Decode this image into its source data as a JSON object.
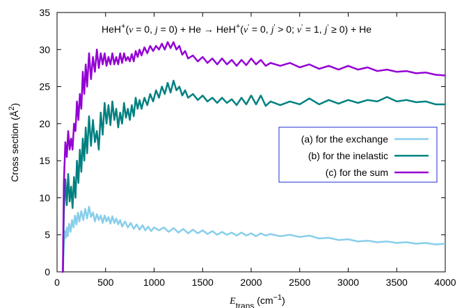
{
  "chart_data": {
    "type": "line",
    "title": {
      "reactant": "HeH",
      "reactant_charge": "+",
      "reactant_state_open": "(",
      "v": "v",
      "v_value": " = 0, ",
      "j": "j",
      "j_value": " = 0) + He → ",
      "product": "HeH",
      "product_charge": "+",
      "product_state_open": "(",
      "vp": "v",
      "prime": "′",
      "vp_value": " = 0, ",
      "jp": "j",
      "jp_value": " > 0; ",
      "vp2": "v",
      "vp2_value": " = 1, ",
      "jp2": "j",
      "jp2_value": " ≥ 0) + He"
    },
    "xlabel": {
      "main": "E",
      "sub": "trans",
      "unit_open": " (cm",
      "unit_sup": "−1",
      "unit_close": ")"
    },
    "ylabel": {
      "main": "Cross section (Å",
      "sup": "2",
      "close": ")"
    },
    "xlim": [
      0,
      4000
    ],
    "ylim": [
      0,
      35
    ],
    "xticks": [
      "0",
      "500",
      "1000",
      "1500",
      "2000",
      "2500",
      "3000",
      "3500",
      "4000"
    ],
    "yticks": [
      "0",
      "5",
      "10",
      "15",
      "20",
      "25",
      "30",
      "35"
    ],
    "grid": false,
    "legend_position": "right-middle",
    "series": [
      {
        "name": "(a) for the exchange",
        "color": "#87ceeb",
        "points": [
          [
            50,
            0
          ],
          [
            60,
            0
          ],
          [
            70,
            3.5
          ],
          [
            80,
            5.5
          ],
          [
            90,
            4.6
          ],
          [
            100,
            6.0
          ],
          [
            110,
            4.8
          ],
          [
            125,
            6.5
          ],
          [
            140,
            5.4
          ],
          [
            155,
            7.0
          ],
          [
            170,
            6.0
          ],
          [
            185,
            7.6
          ],
          [
            200,
            6.4
          ],
          [
            215,
            8.0
          ],
          [
            230,
            6.8
          ],
          [
            250,
            8.2
          ],
          [
            270,
            7.0
          ],
          [
            290,
            8.5
          ],
          [
            310,
            7.2
          ],
          [
            330,
            8.8
          ],
          [
            350,
            7.4
          ],
          [
            370,
            8.0
          ],
          [
            390,
            6.8
          ],
          [
            410,
            7.8
          ],
          [
            430,
            7.0
          ],
          [
            450,
            7.6
          ],
          [
            470,
            6.6
          ],
          [
            490,
            7.6
          ],
          [
            510,
            6.8
          ],
          [
            530,
            7.4
          ],
          [
            550,
            6.5
          ],
          [
            570,
            7.5
          ],
          [
            590,
            6.6
          ],
          [
            610,
            7.2
          ],
          [
            630,
            6.4
          ],
          [
            650,
            7.0
          ],
          [
            670,
            6.1
          ],
          [
            700,
            6.8
          ],
          [
            730,
            6.0
          ],
          [
            760,
            6.6
          ],
          [
            790,
            5.8
          ],
          [
            820,
            6.4
          ],
          [
            850,
            5.7
          ],
          [
            880,
            6.3
          ],
          [
            910,
            5.6
          ],
          [
            940,
            6.1
          ],
          [
            970,
            5.5
          ],
          [
            1000,
            6.0
          ],
          [
            1050,
            5.6
          ],
          [
            1100,
            6.0
          ],
          [
            1150,
            5.4
          ],
          [
            1200,
            5.9
          ],
          [
            1250,
            5.3
          ],
          [
            1300,
            5.8
          ],
          [
            1350,
            5.2
          ],
          [
            1400,
            5.7
          ],
          [
            1450,
            5.2
          ],
          [
            1500,
            5.6
          ],
          [
            1550,
            5.1
          ],
          [
            1600,
            5.5
          ],
          [
            1650,
            5.0
          ],
          [
            1700,
            5.4
          ],
          [
            1750,
            5.0
          ],
          [
            1800,
            5.3
          ],
          [
            1850,
            4.9
          ],
          [
            1900,
            5.3
          ],
          [
            1950,
            4.9
          ],
          [
            2000,
            5.2
          ],
          [
            2050,
            4.8
          ],
          [
            2100,
            5.2
          ],
          [
            2150,
            4.9
          ],
          [
            2200,
            5.1
          ],
          [
            2300,
            4.8
          ],
          [
            2400,
            5.0
          ],
          [
            2500,
            4.7
          ],
          [
            2600,
            4.9
          ],
          [
            2700,
            4.5
          ],
          [
            2800,
            4.6
          ],
          [
            2900,
            4.3
          ],
          [
            3000,
            4.4
          ],
          [
            3100,
            4.1
          ],
          [
            3200,
            4.2
          ],
          [
            3300,
            4.0
          ],
          [
            3400,
            4.1
          ],
          [
            3500,
            3.9
          ],
          [
            3600,
            4.0
          ],
          [
            3700,
            3.8
          ],
          [
            3800,
            3.9
          ],
          [
            3900,
            3.7
          ],
          [
            4000,
            3.8
          ]
        ]
      },
      {
        "name": "(b) for the inelastic",
        "color": "#008080",
        "points": [
          [
            50,
            0
          ],
          [
            60,
            0
          ],
          [
            70,
            8.0
          ],
          [
            85,
            12.5
          ],
          [
            100,
            9.0
          ],
          [
            115,
            13.2
          ],
          [
            130,
            9.5
          ],
          [
            145,
            11.5
          ],
          [
            160,
            8.6
          ],
          [
            175,
            12.8
          ],
          [
            190,
            10.0
          ],
          [
            205,
            15.0
          ],
          [
            220,
            12.0
          ],
          [
            235,
            16.5
          ],
          [
            250,
            13.5
          ],
          [
            265,
            18.0
          ],
          [
            280,
            15.0
          ],
          [
            295,
            19.5
          ],
          [
            310,
            16.0
          ],
          [
            330,
            21.0
          ],
          [
            350,
            17.0
          ],
          [
            370,
            20.5
          ],
          [
            390,
            17.5
          ],
          [
            410,
            19.0
          ],
          [
            430,
            16.5
          ],
          [
            450,
            21.5
          ],
          [
            470,
            18.5
          ],
          [
            490,
            22.8
          ],
          [
            510,
            20.0
          ],
          [
            530,
            22.5
          ],
          [
            550,
            19.8
          ],
          [
            570,
            23.0
          ],
          [
            590,
            20.5
          ],
          [
            610,
            22.0
          ],
          [
            630,
            19.5
          ],
          [
            650,
            21.5
          ],
          [
            670,
            20.0
          ],
          [
            690,
            22.8
          ],
          [
            710,
            20.8
          ],
          [
            730,
            22.0
          ],
          [
            750,
            20.5
          ],
          [
            770,
            22.5
          ],
          [
            790,
            21.0
          ],
          [
            810,
            23.5
          ],
          [
            830,
            22.0
          ],
          [
            850,
            23.2
          ],
          [
            870,
            22.0
          ],
          [
            900,
            23.5
          ],
          [
            930,
            22.5
          ],
          [
            960,
            24.0
          ],
          [
            990,
            23.0
          ],
          [
            1020,
            24.5
          ],
          [
            1050,
            23.5
          ],
          [
            1080,
            25.0
          ],
          [
            1110,
            24.0
          ],
          [
            1140,
            25.5
          ],
          [
            1170,
            24.2
          ],
          [
            1200,
            25.8
          ],
          [
            1230,
            24.5
          ],
          [
            1260,
            25.0
          ],
          [
            1290,
            23.8
          ],
          [
            1320,
            24.5
          ],
          [
            1350,
            23.5
          ],
          [
            1400,
            24.0
          ],
          [
            1450,
            23.2
          ],
          [
            1500,
            23.8
          ],
          [
            1550,
            23.0
          ],
          [
            1600,
            23.5
          ],
          [
            1650,
            22.8
          ],
          [
            1700,
            23.5
          ],
          [
            1750,
            22.8
          ],
          [
            1800,
            23.3
          ],
          [
            1850,
            22.5
          ],
          [
            1900,
            23.5
          ],
          [
            1950,
            22.6
          ],
          [
            2000,
            23.8
          ],
          [
            2050,
            22.6
          ],
          [
            2100,
            23.8
          ],
          [
            2150,
            22.4
          ],
          [
            2200,
            23.0
          ],
          [
            2300,
            22.5
          ],
          [
            2400,
            23.0
          ],
          [
            2500,
            22.6
          ],
          [
            2600,
            23.4
          ],
          [
            2700,
            22.6
          ],
          [
            2800,
            23.2
          ],
          [
            2900,
            22.7
          ],
          [
            3000,
            23.2
          ],
          [
            3100,
            22.8
          ],
          [
            3200,
            23.2
          ],
          [
            3300,
            23.0
          ],
          [
            3400,
            23.6
          ],
          [
            3500,
            23.0
          ],
          [
            3600,
            23.2
          ],
          [
            3700,
            22.9
          ],
          [
            3800,
            23.0
          ],
          [
            3900,
            22.6
          ],
          [
            4000,
            22.6
          ]
        ]
      },
      {
        "name": "(c) for the sum",
        "color": "#9400d3",
        "points": [
          [
            50,
            0
          ],
          [
            60,
            0
          ],
          [
            70,
            12.0
          ],
          [
            85,
            17.5
          ],
          [
            100,
            15.5
          ],
          [
            115,
            19.0
          ],
          [
            130,
            16.5
          ],
          [
            145,
            18.0
          ],
          [
            160,
            16.5
          ],
          [
            175,
            20.0
          ],
          [
            190,
            19.0
          ],
          [
            205,
            23.0
          ],
          [
            220,
            20.5
          ],
          [
            235,
            24.0
          ],
          [
            250,
            22.0
          ],
          [
            265,
            27.0
          ],
          [
            280,
            24.0
          ],
          [
            295,
            28.0
          ],
          [
            310,
            25.0
          ],
          [
            330,
            29.5
          ],
          [
            350,
            26.0
          ],
          [
            370,
            29.0
          ],
          [
            390,
            27.0
          ],
          [
            410,
            30.0
          ],
          [
            430,
            27.5
          ],
          [
            450,
            29.5
          ],
          [
            470,
            28.0
          ],
          [
            490,
            29.5
          ],
          [
            510,
            27.8
          ],
          [
            530,
            29.0
          ],
          [
            550,
            28.0
          ],
          [
            570,
            29.5
          ],
          [
            590,
            28.0
          ],
          [
            610,
            29.0
          ],
          [
            630,
            28.0
          ],
          [
            650,
            29.5
          ],
          [
            670,
            28.2
          ],
          [
            690,
            29.5
          ],
          [
            710,
            28.5
          ],
          [
            730,
            29.0
          ],
          [
            750,
            28.4
          ],
          [
            770,
            29.4
          ],
          [
            790,
            28.4
          ],
          [
            810,
            29.8
          ],
          [
            830,
            29.0
          ],
          [
            850,
            30.0
          ],
          [
            870,
            29.2
          ],
          [
            900,
            30.3
          ],
          [
            930,
            29.5
          ],
          [
            960,
            30.5
          ],
          [
            990,
            29.8
          ],
          [
            1020,
            30.5
          ],
          [
            1050,
            30.0
          ],
          [
            1080,
            30.8
          ],
          [
            1110,
            30.0
          ],
          [
            1140,
            31.0
          ],
          [
            1170,
            30.2
          ],
          [
            1200,
            31.0
          ],
          [
            1230,
            30.0
          ],
          [
            1260,
            30.5
          ],
          [
            1290,
            29.3
          ],
          [
            1320,
            29.8
          ],
          [
            1350,
            28.8
          ],
          [
            1400,
            29.2
          ],
          [
            1450,
            28.4
          ],
          [
            1500,
            29.0
          ],
          [
            1550,
            28.2
          ],
          [
            1600,
            28.8
          ],
          [
            1650,
            28.0
          ],
          [
            1700,
            28.8
          ],
          [
            1750,
            28.0
          ],
          [
            1800,
            28.6
          ],
          [
            1850,
            27.8
          ],
          [
            1900,
            28.6
          ],
          [
            1950,
            27.9
          ],
          [
            2000,
            28.8
          ],
          [
            2050,
            28.0
          ],
          [
            2100,
            28.6
          ],
          [
            2150,
            27.8
          ],
          [
            2200,
            28.2
          ],
          [
            2300,
            27.8
          ],
          [
            2400,
            28.2
          ],
          [
            2500,
            27.6
          ],
          [
            2600,
            28.0
          ],
          [
            2700,
            27.4
          ],
          [
            2800,
            27.8
          ],
          [
            2900,
            27.3
          ],
          [
            3000,
            27.8
          ],
          [
            3100,
            27.3
          ],
          [
            3200,
            27.6
          ],
          [
            3300,
            27.1
          ],
          [
            3400,
            27.3
          ],
          [
            3500,
            27.0
          ],
          [
            3600,
            27.1
          ],
          [
            3700,
            26.8
          ],
          [
            3800,
            26.9
          ],
          [
            3900,
            26.6
          ],
          [
            4000,
            26.5
          ]
        ]
      }
    ]
  }
}
